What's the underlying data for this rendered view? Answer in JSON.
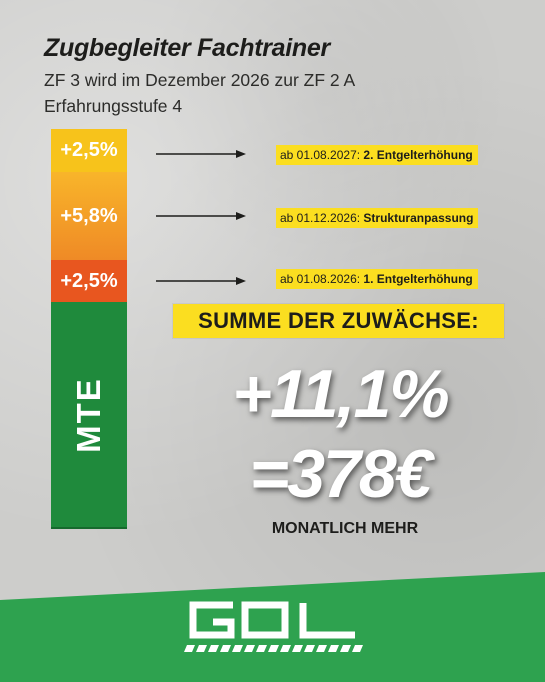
{
  "header": {
    "title": "Zugbegleiter Fachtrainer",
    "subtitle_line1": "ZF 3 wird im Dezember 2026 zur ZF 2 A",
    "subtitle_line2": "Erfahrungsstufe 4"
  },
  "bar": {
    "segments": [
      {
        "label": "+2,5%",
        "color": "#f7c31b"
      },
      {
        "label": "+5,8%",
        "color": "#f0a028"
      },
      {
        "label": "+2,5%",
        "color": "#e8561f"
      }
    ],
    "base_label": "MTE",
    "base_color": "#1f8a3c"
  },
  "steps": [
    {
      "date": "ab 01.08.2027:",
      "description": "2. Entgelterhöhung"
    },
    {
      "date": "ab 01.12.2026:",
      "description": "Strukturanpassung"
    },
    {
      "date": "ab 01.08.2026:",
      "description": "1. Entgelterhöhung"
    }
  ],
  "summary": {
    "heading": "SUMME DER ZUWÄCHSE:",
    "percent": "+11,1%",
    "amount": "=378€",
    "note": "MONATLICH MEHR"
  },
  "footer": {
    "logo_name": "gdl-logo",
    "background_color": "#2ea24f"
  }
}
